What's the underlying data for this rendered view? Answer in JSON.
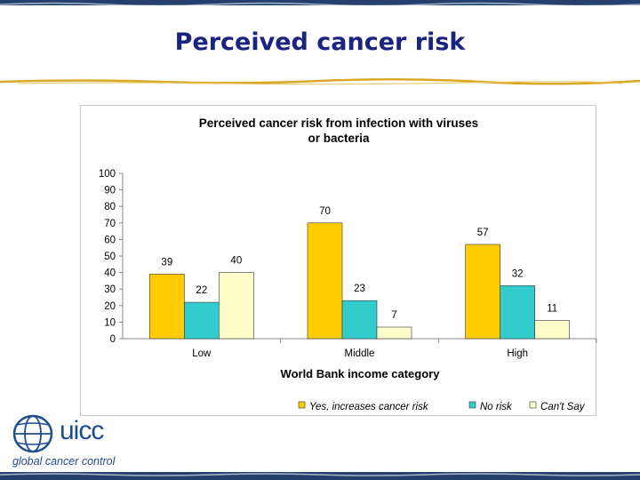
{
  "slide": {
    "title": "Perceived cancer risk"
  },
  "logo": {
    "name": "uicc",
    "tagline": "global cancer control",
    "color": "#1f4e8c"
  },
  "colors": {
    "title": "#1a237e",
    "stripe": "#24406e",
    "rule": "#d9a826"
  },
  "chart_data": {
    "type": "bar",
    "title": "Perceived cancer risk from infection with viruses or bacteria",
    "xlabel": "World Bank income category",
    "ylabel": "",
    "categories": [
      "Low",
      "Middle",
      "High"
    ],
    "ylim": [
      0,
      100
    ],
    "yticks": [
      0,
      10,
      20,
      30,
      40,
      50,
      60,
      70,
      80,
      90,
      100
    ],
    "grid": false,
    "legend_position": "bottom-right",
    "series": [
      {
        "name": "Yes, increases cancer risk",
        "values": [
          39,
          70,
          57
        ],
        "color": "#ffcc00"
      },
      {
        "name": "No risk",
        "values": [
          22,
          23,
          32
        ],
        "color": "#33cccc"
      },
      {
        "name": "Can't Say",
        "values": [
          40,
          7,
          11
        ],
        "color": "#ffffcc"
      }
    ]
  }
}
